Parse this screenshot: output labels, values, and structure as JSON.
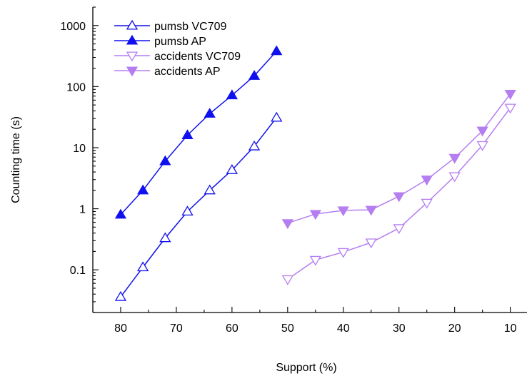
{
  "chart_data": {
    "type": "line",
    "title": "",
    "xlabel": "Support (%)",
    "ylabel": "Counting time (s)",
    "x_scale": "linear",
    "x_reversed": true,
    "xlim": [
      85,
      7
    ],
    "x_ticks": [
      80,
      70,
      60,
      50,
      40,
      30,
      20,
      10
    ],
    "x_tick_labels": [
      "80",
      "70",
      "60",
      "50",
      "40",
      "30",
      "20",
      "10"
    ],
    "y_scale": "log",
    "ylim": [
      0.02,
      2000
    ],
    "y_ticks": [
      0.1,
      1,
      10,
      100,
      1000
    ],
    "y_tick_labels": [
      "0.1",
      "1",
      "10",
      "100",
      "1000"
    ],
    "grid": false,
    "legend_position": "top-left",
    "series": [
      {
        "name": "pumsb VC709",
        "color": "#1010ee",
        "marker": "triangle-up-open",
        "x": [
          80,
          76,
          72,
          68,
          64,
          60,
          56,
          52
        ],
        "y": [
          0.036,
          0.11,
          0.33,
          0.9,
          2.0,
          4.3,
          10.5,
          31
        ]
      },
      {
        "name": "pumsb AP",
        "color": "#1010ee",
        "marker": "triangle-up-filled",
        "x": [
          80,
          76,
          72,
          68,
          64,
          60,
          56,
          52
        ],
        "y": [
          0.8,
          2.0,
          6.0,
          16,
          36,
          72,
          150,
          380
        ]
      },
      {
        "name": "accidents VC709",
        "color": "#b57ef0",
        "marker": "triangle-down-open",
        "x": [
          50,
          45,
          40,
          35,
          30,
          25,
          20,
          15,
          10
        ],
        "y": [
          0.07,
          0.145,
          0.195,
          0.28,
          0.48,
          1.25,
          3.4,
          11,
          45
        ]
      },
      {
        "name": "accidents AP",
        "color": "#b57ef0",
        "marker": "triangle-down-filled",
        "x": [
          50,
          45,
          40,
          35,
          30,
          25,
          20,
          15,
          10
        ],
        "y": [
          0.58,
          0.82,
          0.94,
          0.96,
          1.6,
          3.0,
          6.8,
          19,
          76
        ]
      }
    ]
  }
}
